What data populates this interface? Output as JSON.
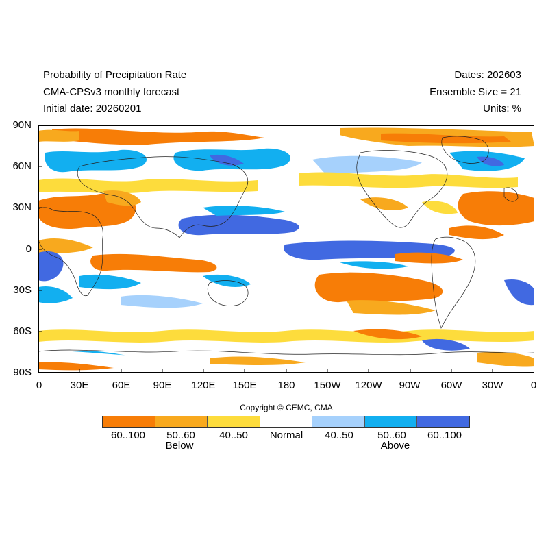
{
  "header": {
    "title": "Probability of Precipitation Rate",
    "model": "CMA-CPSv3 monthly forecast",
    "initial": "Initial date: 20260201",
    "dates": "Dates: 202603",
    "ensemble": "Ensemble Size = 21",
    "units": "Units: %"
  },
  "axes": {
    "lat_labels": [
      "90N",
      "60N",
      "30N",
      "0",
      "30S",
      "60S",
      "90S"
    ],
    "lon_labels": [
      "0",
      "30E",
      "60E",
      "90E",
      "120E",
      "150E",
      "180",
      "150W",
      "120W",
      "90W",
      "60W",
      "30W",
      "0"
    ]
  },
  "copyright": "Copyright © CEMC, CMA",
  "legend": {
    "bins": [
      {
        "label": "60..100",
        "color": "#f77d07"
      },
      {
        "label": "50..60",
        "color": "#f8a91e"
      },
      {
        "label": "40..50",
        "color": "#fddc3c"
      },
      {
        "label": "Normal",
        "color": "#ffffff"
      },
      {
        "label": "40..50",
        "color": "#a6d1fc"
      },
      {
        "label": "50..60",
        "color": "#12aff0"
      },
      {
        "label": "60..100",
        "color": "#4169e1"
      }
    ],
    "below_label": "Below",
    "above_label": "Above"
  }
}
